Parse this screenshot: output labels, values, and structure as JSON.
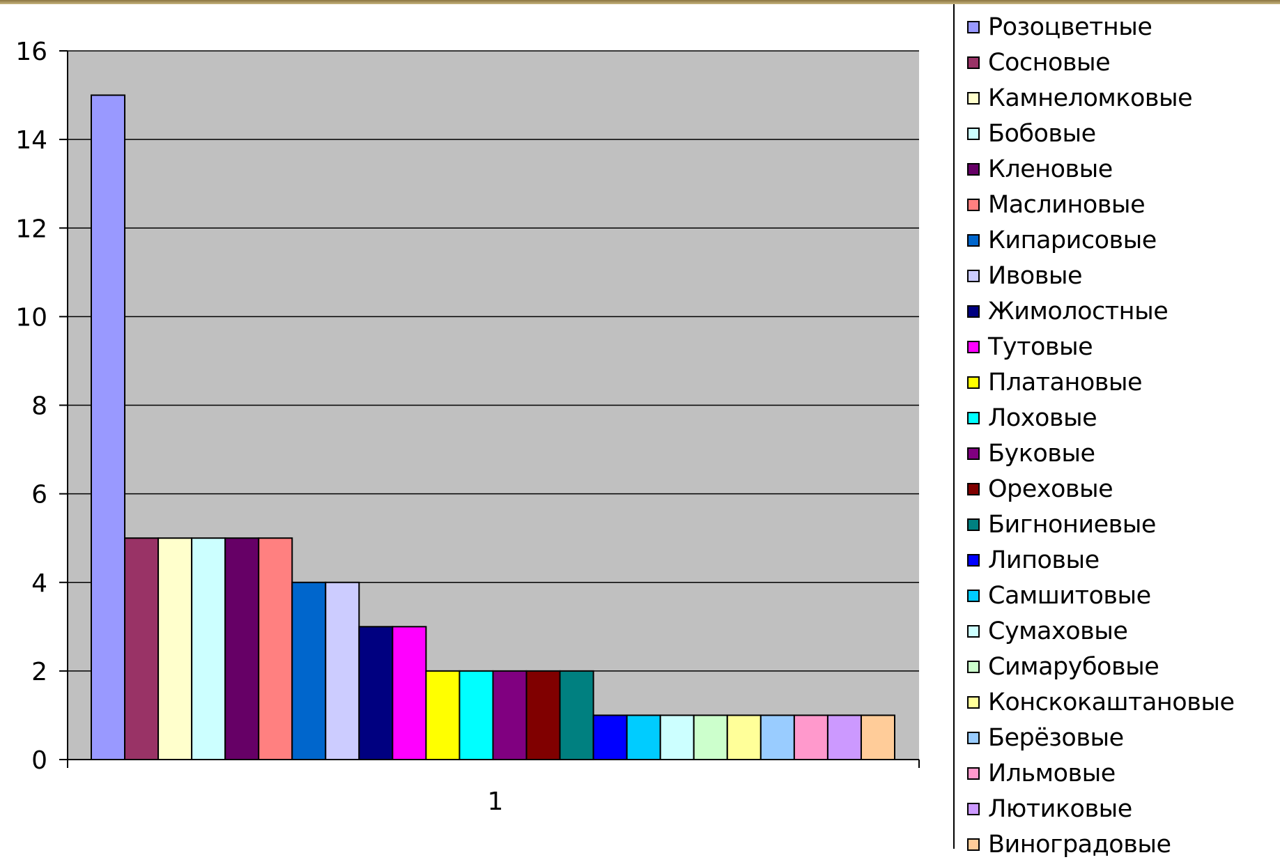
{
  "chart_data": {
    "type": "bar",
    "categories": [
      "1"
    ],
    "ylim": [
      0,
      16
    ],
    "yticks": [
      0,
      2,
      4,
      6,
      8,
      10,
      12,
      14,
      16
    ],
    "grid": true,
    "legend_position": "right",
    "series": [
      {
        "name": "Розоцветные",
        "value": 15,
        "color": "#9999ff"
      },
      {
        "name": "Сосновые",
        "value": 5,
        "color": "#993366"
      },
      {
        "name": "Камнеломковые",
        "value": 5,
        "color": "#ffffcc"
      },
      {
        "name": "Бобовые",
        "value": 5,
        "color": "#ccffff"
      },
      {
        "name": "Кленовые",
        "value": 5,
        "color": "#660066"
      },
      {
        "name": "Маслиновые",
        "value": 5,
        "color": "#ff8080"
      },
      {
        "name": "Кипарисовые",
        "value": 4,
        "color": "#0066cc"
      },
      {
        "name": "Ивовые",
        "value": 4,
        "color": "#ccccff"
      },
      {
        "name": "Жимолостные",
        "value": 3,
        "color": "#000080"
      },
      {
        "name": "Тутовые",
        "value": 3,
        "color": "#ff00ff"
      },
      {
        "name": "Платановые",
        "value": 2,
        "color": "#ffff00"
      },
      {
        "name": "Лоховые",
        "value": 2,
        "color": "#00ffff"
      },
      {
        "name": "Буковые",
        "value": 2,
        "color": "#800080"
      },
      {
        "name": "Ореховые",
        "value": 2,
        "color": "#800000"
      },
      {
        "name": "Бигнониевые",
        "value": 2,
        "color": "#008080"
      },
      {
        "name": "Липовые",
        "value": 1,
        "color": "#0000ff"
      },
      {
        "name": "Самшитовые",
        "value": 1,
        "color": "#00ccff"
      },
      {
        "name": "Сумаховые",
        "value": 1,
        "color": "#ccffff"
      },
      {
        "name": "Симарубовые",
        "value": 1,
        "color": "#ccffcc"
      },
      {
        "name": "Конскокаштановые",
        "value": 1,
        "color": "#ffff99"
      },
      {
        "name": "Берёзовые",
        "value": 1,
        "color": "#99ccff"
      },
      {
        "name": "Ильмовые",
        "value": 1,
        "color": "#ff99cc"
      },
      {
        "name": "Лютиковые",
        "value": 1,
        "color": "#cc99ff"
      },
      {
        "name": "Виноградовые",
        "value": 1,
        "color": "#ffcc99"
      }
    ]
  },
  "colors": {
    "plot_background": "#c0c0c0",
    "gridline": "#000000"
  }
}
